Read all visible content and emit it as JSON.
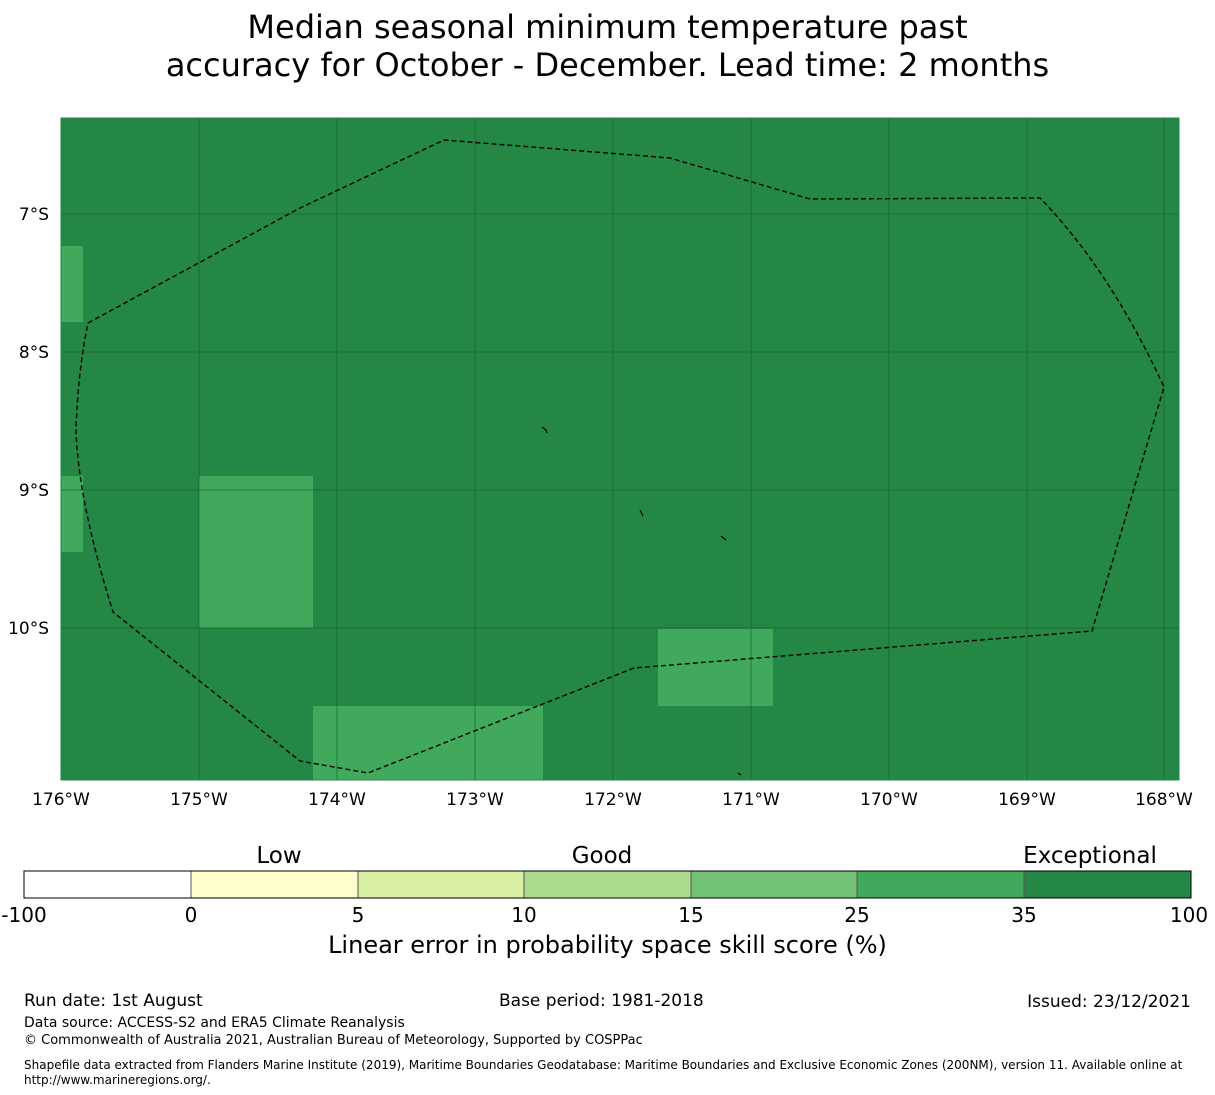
{
  "title": {
    "line1": "Median seasonal minimum temperature past",
    "line2": "accuracy for October - December. Lead time: 2 months"
  },
  "map": {
    "longitude_labels": [
      "176°W",
      "175°W",
      "174°W",
      "173°W",
      "172°W",
      "171°W",
      "170°W",
      "169°W",
      "168°W"
    ],
    "latitude_labels": [
      "7°S",
      "8°S",
      "9°S",
      "10°S"
    ],
    "background_color": "#258745",
    "lighter_cell_color": "#40a95b",
    "eez_boundary": "dashed black"
  },
  "colorbar": {
    "category_labels": {
      "low": "Low",
      "good": "Good",
      "exceptional": "Exceptional"
    },
    "ticks": [
      "-100",
      "0",
      "5",
      "10",
      "15",
      "25",
      "35",
      "100"
    ],
    "colors": [
      "#ffffff",
      "#feffcd",
      "#d9efa4",
      "#acdc8e",
      "#73c176",
      "#40a95b",
      "#258745"
    ],
    "title": "Linear error in probability space skill score (%)"
  },
  "footer": {
    "run_date": "Run date: 1st August",
    "base_period": "Base period: 1981-2018",
    "issued": "Issued: 23/12/2021",
    "data_source": "Data source: ACCESS-S2 and ERA5 Climate Reanalysis",
    "copyright": "© Commonwealth of Australia 2021, Australian Bureau of Meteorology, Supported by COSPPac",
    "shapefile_line1": "Shapefile data extracted from Flanders Marine Institute (2019), Maritime Boundaries Geodatabase: Maritime Boundaries and Exclusive Economic Zones (200NM), version 11. Available online at",
    "shapefile_line2": "http://www.marineregions.org/."
  }
}
